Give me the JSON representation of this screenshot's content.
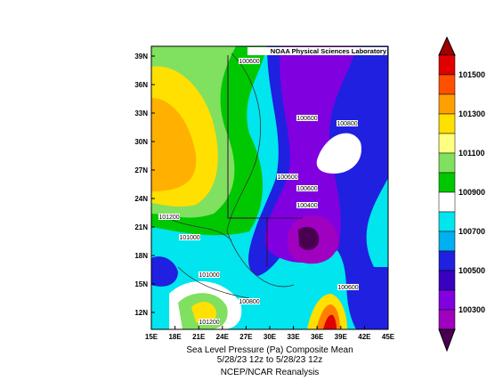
{
  "header": {
    "title": "NOAA Physical Sciences Laboratory"
  },
  "x_axis": {
    "ticks": [
      "15E",
      "18E",
      "21E",
      "24E",
      "27E",
      "30E",
      "33E",
      "36E",
      "39E",
      "42E",
      "45E"
    ]
  },
  "y_axis": {
    "ticks": [
      "39N",
      "36N",
      "33N",
      "30N",
      "27N",
      "24N",
      "21N",
      "18N",
      "15N",
      "12N"
    ]
  },
  "contour_labels": [
    "100600",
    "100600",
    "100800",
    "100600",
    "100600",
    "100400",
    "101200",
    "101000",
    "101000",
    "100800",
    "100600",
    "101200"
  ],
  "colorbar": {
    "labels": [
      "101500",
      "101300",
      "101100",
      "100900",
      "100700",
      "100500",
      "100300"
    ]
  },
  "caption": {
    "line1": "Sea Level Pressure (Pa)   Composite Mean",
    "line2": "5/28/23 12z  to 5/28/23 12z",
    "line3": "NCEP/NCAR Reanalysis"
  }
}
